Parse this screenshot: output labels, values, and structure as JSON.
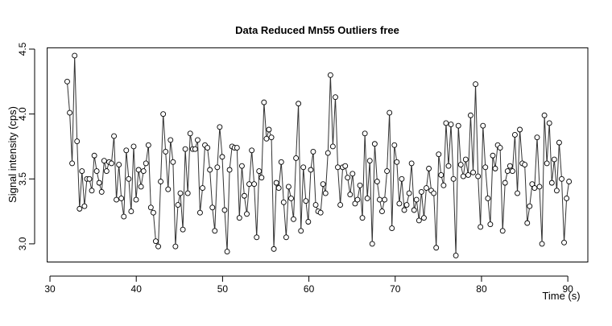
{
  "chart_data": {
    "type": "line",
    "markers": true,
    "color": "#333333",
    "title": "Data Reduced Mn55 Outliers free",
    "xlabel": "Time (s)",
    "ylabel": "Signal intensity (cps)",
    "xlim": [
      29.68,
      92.32
    ],
    "ylim": [
      2.86,
      4.51
    ],
    "xticks": [
      30,
      40,
      50,
      60,
      70,
      80,
      90
    ],
    "yticks": [
      {
        "value": 3,
        "label": "3.0"
      },
      3.5,
      {
        "value": 4,
        "label": "4.0"
      },
      4.5
    ],
    "x": [
      32.0,
      32.29,
      32.57,
      32.86,
      33.14,
      33.43,
      33.71,
      34.0,
      34.28,
      34.57,
      34.85,
      35.14,
      35.42,
      35.71,
      35.99,
      36.28,
      36.56,
      36.85,
      37.13,
      37.42,
      37.7,
      37.99,
      38.27,
      38.56,
      38.84,
      39.13,
      39.41,
      39.7,
      39.98,
      40.27,
      40.55,
      40.84,
      41.12,
      41.41,
      41.69,
      41.98,
      42.26,
      42.55,
      42.83,
      43.12,
      43.4,
      43.69,
      43.97,
      44.26,
      44.54,
      44.83,
      45.11,
      45.4,
      45.68,
      45.97,
      46.25,
      46.54,
      46.82,
      47.11,
      47.39,
      47.68,
      47.96,
      48.25,
      48.53,
      48.82,
      49.1,
      49.39,
      49.67,
      49.96,
      50.24,
      50.53,
      50.81,
      51.1,
      51.38,
      51.67,
      51.95,
      52.24,
      52.52,
      52.81,
      53.09,
      53.38,
      53.66,
      53.95,
      54.23,
      54.52,
      54.8,
      55.09,
      55.37,
      55.66,
      55.94,
      56.23,
      56.51,
      56.8,
      57.08,
      57.37,
      57.65,
      57.94,
      58.22,
      58.51,
      58.79,
      59.08,
      59.36,
      59.65,
      59.93,
      60.22,
      60.5,
      60.79,
      61.07,
      61.36,
      61.64,
      61.93,
      62.21,
      62.5,
      62.78,
      63.07,
      63.35,
      63.64,
      63.92,
      64.21,
      64.49,
      64.78,
      65.06,
      65.35,
      65.63,
      65.92,
      66.2,
      66.49,
      66.77,
      67.06,
      67.34,
      67.63,
      67.91,
      68.2,
      68.48,
      68.77,
      69.05,
      69.34,
      69.62,
      69.91,
      70.19,
      70.48,
      70.76,
      71.05,
      71.33,
      71.62,
      71.9,
      72.19,
      72.47,
      72.76,
      73.04,
      73.33,
      73.61,
      73.9,
      74.18,
      74.47,
      74.75,
      75.04,
      75.32,
      75.61,
      75.89,
      76.18,
      76.46,
      76.75,
      77.03,
      77.32,
      77.6,
      77.89,
      78.17,
      78.46,
      78.74,
      79.03,
      79.31,
      79.6,
      79.88,
      80.17,
      80.45,
      80.74,
      81.02,
      81.31,
      81.59,
      81.88,
      82.16,
      82.45,
      82.73,
      83.02,
      83.3,
      83.59,
      83.87,
      84.16,
      84.44,
      84.73,
      85.01,
      85.3,
      85.58,
      85.87,
      86.15,
      86.44,
      86.72,
      87.01,
      87.29,
      87.58,
      87.86,
      88.15,
      88.43,
      88.72,
      89.0,
      89.29,
      89.57,
      89.86,
      90.14
    ],
    "values": [
      4.25,
      4.01,
      3.62,
      4.45,
      3.79,
      3.27,
      3.56,
      3.29,
      3.5,
      3.5,
      3.41,
      3.68,
      3.56,
      3.47,
      3.4,
      3.64,
      3.56,
      3.63,
      3.62,
      3.83,
      3.34,
      3.61,
      3.35,
      3.21,
      3.72,
      3.5,
      3.25,
      3.75,
      3.34,
      3.57,
      3.44,
      3.56,
      3.62,
      3.76,
      3.28,
      3.24,
      3.02,
      2.98,
      3.48,
      4.0,
      3.71,
      3.42,
      3.8,
      3.63,
      2.98,
      3.3,
      3.39,
      3.11,
      3.73,
      3.39,
      3.85,
      3.73,
      3.73,
      3.8,
      3.24,
      3.43,
      3.76,
      3.74,
      3.57,
      3.28,
      3.1,
      3.59,
      3.9,
      3.67,
      3.26,
      2.94,
      3.57,
      3.75,
      3.74,
      3.74,
      3.2,
      3.6,
      3.37,
      3.23,
      3.46,
      3.72,
      3.46,
      3.05,
      3.56,
      3.51,
      4.09,
      3.81,
      3.88,
      3.82,
      2.96,
      3.47,
      3.43,
      3.63,
      3.32,
      3.05,
      3.44,
      3.35,
      3.19,
      3.66,
      4.08,
      3.1,
      3.59,
      3.33,
      3.17,
      3.57,
      3.71,
      3.3,
      3.25,
      3.24,
      3.46,
      3.39,
      3.7,
      4.3,
      3.75,
      4.13,
      3.59,
      3.3,
      3.59,
      3.6,
      3.51,
      3.38,
      3.54,
      3.31,
      3.34,
      3.45,
      3.2,
      3.85,
      3.35,
      3.64,
      3.0,
      3.77,
      3.48,
      3.34,
      3.25,
      3.34,
      3.56,
      4.01,
      3.12,
      3.76,
      3.63,
      3.31,
      3.5,
      3.26,
      3.3,
      3.39,
      3.62,
      3.26,
      3.34,
      3.18,
      3.4,
      3.2,
      3.43,
      3.58,
      3.41,
      3.39,
      2.97,
      3.69,
      3.53,
      3.45,
      3.93,
      3.6,
      3.92,
      3.5,
      2.91,
      3.91,
      3.61,
      3.52,
      3.65,
      3.53,
      3.99,
      3.55,
      4.23,
      3.52,
      3.13,
      3.91,
      3.59,
      3.35,
      3.15,
      3.68,
      3.58,
      3.76,
      3.74,
      3.1,
      3.47,
      3.56,
      3.6,
      3.56,
      3.84,
      3.39,
      3.88,
      3.62,
      3.61,
      3.16,
      3.29,
      3.46,
      3.43,
      3.82,
      3.44,
      3.0,
      3.99,
      3.62,
      3.93,
      3.47,
      3.65,
      3.41,
      3.78,
      3.5,
      3.01,
      3.35,
      3.48
    ]
  }
}
